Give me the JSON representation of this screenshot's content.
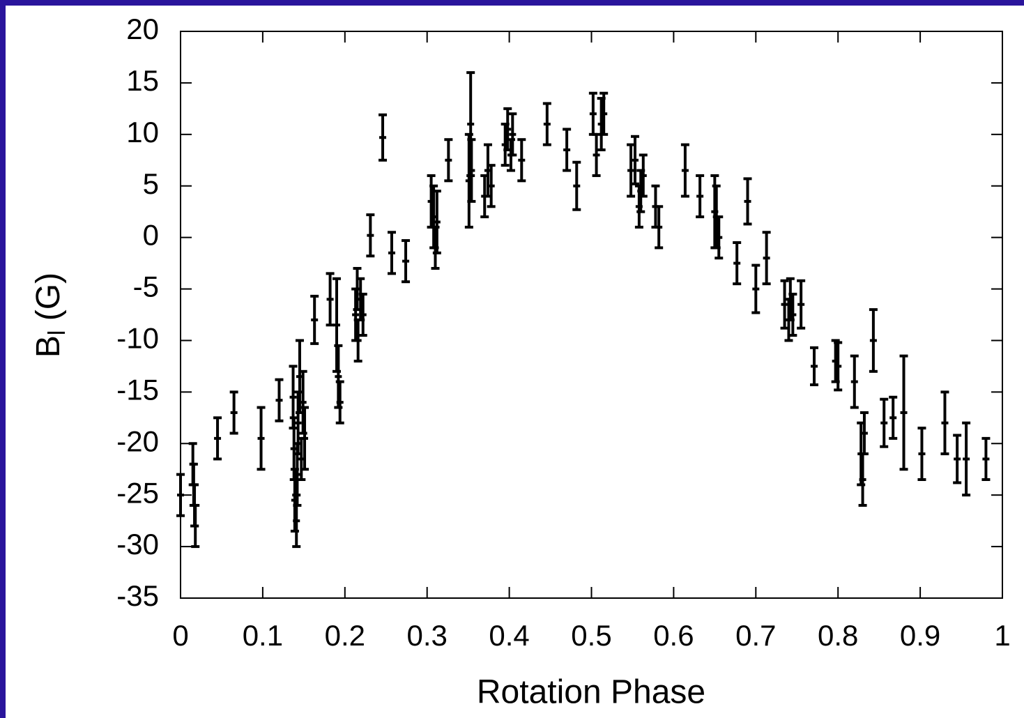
{
  "chart_data": {
    "type": "errorbar",
    "color": "#000000",
    "xlabel": "Rotation Phase",
    "ylabel": [
      "B",
      "l",
      " (G)"
    ],
    "xlim": [
      0,
      1
    ],
    "ylim": [
      -35,
      20
    ],
    "xticks": [
      0,
      0.1,
      0.2,
      0.3,
      0.4,
      0.5,
      0.6,
      0.7,
      0.8,
      0.9,
      1
    ],
    "yticks": [
      -35,
      -30,
      -25,
      -20,
      -15,
      -10,
      -5,
      0,
      5,
      10,
      15,
      20
    ],
    "x": [
      0.0,
      0.015,
      0.016,
      0.017,
      0.018,
      0.045,
      0.065,
      0.098,
      0.12,
      0.137,
      0.138,
      0.139,
      0.141,
      0.142,
      0.143,
      0.145,
      0.147,
      0.149,
      0.151,
      0.163,
      0.182,
      0.19,
      0.192,
      0.194,
      0.213,
      0.215,
      0.216,
      0.219,
      0.222,
      0.231,
      0.246,
      0.257,
      0.274,
      0.305,
      0.308,
      0.31,
      0.312,
      0.326,
      0.351,
      0.353,
      0.354,
      0.37,
      0.374,
      0.378,
      0.395,
      0.398,
      0.402,
      0.404,
      0.415,
      0.446,
      0.47,
      0.482,
      0.502,
      0.506,
      0.512,
      0.515,
      0.548,
      0.553,
      0.558,
      0.56,
      0.563,
      0.578,
      0.582,
      0.614,
      0.632,
      0.65,
      0.652,
      0.655,
      0.677,
      0.69,
      0.7,
      0.713,
      0.735,
      0.74,
      0.742,
      0.745,
      0.755,
      0.771,
      0.797,
      0.8,
      0.82,
      0.828,
      0.83,
      0.832,
      0.843,
      0.856,
      0.867,
      0.88,
      0.902,
      0.93,
      0.945,
      0.956,
      0.98
    ],
    "values": [
      -25,
      -22,
      -24,
      -26,
      -28,
      -19.5,
      -17,
      -19.5,
      -15.8,
      -15.5,
      -20.5,
      -25.5,
      -27.5,
      -23,
      -18,
      -13.5,
      -21.5,
      -16,
      -19.5,
      -8,
      -6,
      -8.5,
      -13.5,
      -16,
      -7.5,
      -5,
      -10,
      -6,
      -7.5,
      0.2,
      9.7,
      -1.5,
      -2.3,
      3.5,
      2,
      -1,
      1.5,
      7.5,
      5.5,
      11,
      6.5,
      4,
      6.5,
      5,
      9,
      10.5,
      8,
      10,
      7.5,
      11,
      8.5,
      5,
      12,
      8,
      11,
      12,
      6.5,
      7.5,
      3,
      4.5,
      6,
      3,
      1,
      6.5,
      4,
      2.5,
      2,
      0,
      -2.5,
      3.5,
      -5,
      -2,
      -6.5,
      -8,
      -6,
      -7.5,
      -6.5,
      -12.5,
      -12,
      -12.5,
      -14,
      -21,
      -23.5,
      -19,
      -10,
      -18,
      -17.5,
      -17,
      -21,
      -18,
      -21.5,
      -21.5,
      -21.5
    ],
    "errors": [
      2,
      2,
      2,
      2,
      2,
      2,
      2,
      3,
      2,
      3,
      3,
      3,
      2.5,
      3,
      3,
      3.5,
      2,
      3,
      3,
      2.3,
      2.5,
      4.5,
      3,
      2,
      2.5,
      2,
      2,
      2,
      2,
      2,
      2.2,
      2,
      2,
      2.5,
      3,
      2,
      3,
      2,
      4.5,
      5,
      3,
      2,
      2.5,
      2,
      2,
      2,
      1.5,
      2,
      2,
      2,
      2,
      2.3,
      2,
      2,
      2.5,
      2,
      2.5,
      2.3,
      2,
      2,
      2,
      2,
      2,
      2.5,
      2,
      3.5,
      3,
      2,
      2,
      2.2,
      2.3,
      2.5,
      2.3,
      2,
      2,
      2,
      2.3,
      1.8,
      2,
      2.3,
      2.5,
      3,
      2.5,
      2,
      3,
      2.3,
      2,
      5.5,
      2.5,
      3,
      2.3,
      3.5,
      2
    ]
  }
}
